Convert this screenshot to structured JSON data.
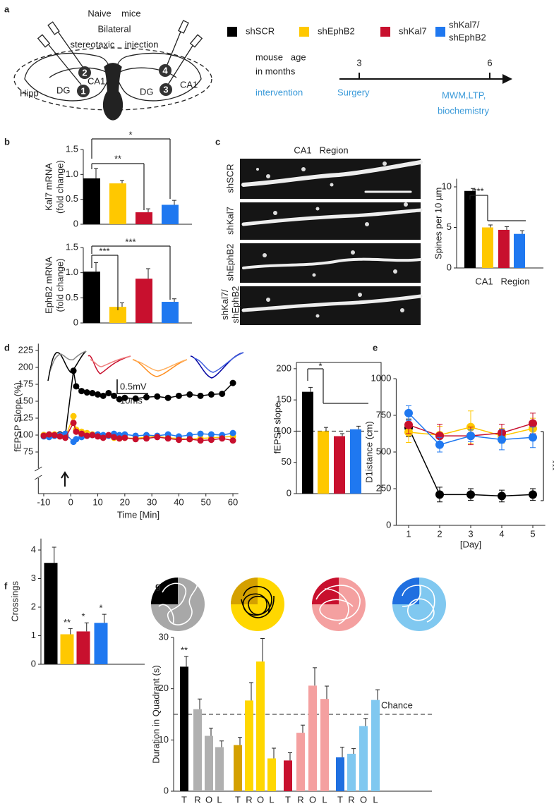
{
  "figure": {
    "panel_labels": [
      "a",
      "b",
      "c",
      "d",
      "e",
      "f",
      "g"
    ],
    "legend": [
      {
        "label": [
          "shSCR"
        ],
        "color": "#000000"
      },
      {
        "label": [
          "shEphB2"
        ],
        "color": "#ffc800"
      },
      {
        "label": [
          "shKal7"
        ],
        "color": "#c8102e"
      },
      {
        "label": [
          "shKal7/",
          "shEphB2"
        ],
        "color": "#1f78f0"
      }
    ],
    "diagram": {
      "title_lines": [
        "Naive    mice",
        "Bilateral",
        "stereotaxic    injection"
      ],
      "regions": [
        "Hipp",
        "DG",
        "CA1",
        "DG",
        "CA1"
      ],
      "sites": [
        "1",
        "2",
        "3",
        "4"
      ]
    },
    "timeline": {
      "axis_label": [
        "mouse   age",
        "in months"
      ],
      "ticks": [
        "3",
        "6"
      ],
      "row_label": "intervention",
      "events": [
        [
          "Surgery"
        ],
        [
          "MWM,LTP,",
          "biochemistry"
        ]
      ]
    },
    "micrographs": {
      "title": "CA1   Region",
      "rows": [
        [
          "shSCR"
        ],
        [
          "shKal7"
        ],
        [
          "shEphB2"
        ],
        [
          "shKal7/",
          "shEphB2"
        ]
      ]
    },
    "traces_scale": [
      "0.5mV",
      "10ms"
    ]
  },
  "chart_data": [
    {
      "type": "bar",
      "ylabel": [
        "Kal7 mRNA",
        "(fold change)"
      ],
      "values": [
        0.92,
        0.82,
        0.24,
        0.39
      ],
      "errors": [
        0.2,
        0.06,
        0.07,
        0.09
      ],
      "colors": [
        "#000000",
        "#ffc800",
        "#c8102e",
        "#1f78f0"
      ],
      "ylim": [
        0,
        1.5
      ],
      "yticks": [
        0,
        0.5,
        {
          "value": 1,
          "label": "1.0"
        },
        1.5
      ],
      "significance": [
        "**",
        "*"
      ]
    },
    {
      "type": "bar",
      "ylabel": [
        "EphB2 mRNA",
        "(fold change)"
      ],
      "values": [
        1.02,
        0.32,
        0.88,
        0.42
      ],
      "errors": [
        0.18,
        0.08,
        0.2,
        0.06
      ],
      "colors": [
        "#000000",
        "#ffc800",
        "#c8102e",
        "#1f78f0"
      ],
      "ylim": [
        0,
        1.5
      ],
      "yticks": [
        0,
        0.5,
        {
          "value": 1,
          "label": "1.0"
        },
        1.5
      ],
      "significance": [
        "***",
        "***"
      ]
    },
    {
      "type": "bar",
      "ylabel": [
        "Spines per 10 µm"
      ],
      "xlabel": "CA1   Region",
      "values": [
        9.5,
        5.0,
        4.7,
        4.2
      ],
      "errors": [
        0.3,
        0.3,
        0.4,
        0.4
      ],
      "colors": [
        "#000000",
        "#ffc800",
        "#c8102e",
        "#1f78f0"
      ],
      "ylim": [
        0,
        11
      ],
      "yticks": [
        0,
        5,
        10
      ],
      "significance": [
        "***"
      ]
    },
    {
      "type": "line",
      "ylabel": [
        "fEPSP Slope (%)"
      ],
      "xlabel": "Time [Min]",
      "x": [
        -10,
        -8,
        -6,
        -4,
        -2,
        1,
        2,
        4,
        6,
        8,
        10,
        12,
        14,
        16,
        18,
        20,
        24,
        28,
        32,
        36,
        40,
        44,
        48,
        52,
        56,
        60
      ],
      "series": [
        {
          "color": "#000000",
          "values": [
            100,
            100,
            99,
            101,
            100,
            195,
            172,
            165,
            163,
            162,
            160,
            158,
            162,
            158,
            153,
            155,
            154,
            156,
            157,
            155,
            158,
            160,
            158,
            160,
            161,
            177
          ]
        },
        {
          "color": "#ffc800",
          "values": [
            100,
            98,
            101,
            99,
            97,
            128,
            108,
            105,
            103,
            101,
            100,
            97,
            99,
            96,
            95,
            96,
            95,
            97,
            98,
            96,
            95,
            94,
            95,
            96,
            97,
            98
          ]
        },
        {
          "color": "#1f78f0",
          "values": [
            98,
            97,
            99,
            100,
            102,
            90,
            94,
            97,
            99,
            100,
            101,
            100,
            99,
            102,
            100,
            101,
            99,
            100,
            99,
            101,
            98,
            100,
            102,
            101,
            100,
            103
          ]
        },
        {
          "color": "#c8102e",
          "values": [
            99,
            101,
            100,
            98,
            96,
            118,
            105,
            102,
            99,
            100,
            98,
            96,
            100,
            97,
            95,
            96,
            94,
            95,
            97,
            95,
            93,
            94,
            92,
            93,
            95,
            92
          ]
        }
      ],
      "xlim": [
        -12,
        62
      ],
      "xticks": [
        -10,
        0,
        10,
        20,
        30,
        40,
        50,
        60
      ],
      "ylim": [
        60,
        235
      ],
      "yticks": [
        75,
        100,
        125,
        150,
        175,
        200,
        225
      ]
    },
    {
      "type": "bar",
      "ylabel": [
        "fEPSP slope"
      ],
      "values": [
        163,
        100,
        92,
        103
      ],
      "errors": [
        7,
        6,
        4,
        5
      ],
      "colors": [
        "#000000",
        "#ffc800",
        "#c8102e",
        "#1f78f0"
      ],
      "ylim": [
        0,
        210
      ],
      "yticks": [
        0,
        50,
        100,
        150,
        200
      ],
      "reference_line": 100,
      "significance": [
        "*"
      ]
    },
    {
      "type": "line",
      "ylabel": [
        "D1istance (cm)"
      ],
      "xlabel": "[Day]",
      "x": [
        1,
        2,
        3,
        4,
        5
      ],
      "series": [
        {
          "color": "#000000",
          "values": [
            665,
            210,
            210,
            200,
            210
          ],
          "errors": [
            60,
            50,
            40,
            40,
            40
          ]
        },
        {
          "color": "#ffc800",
          "values": [
            635,
            615,
            670,
            610,
            660
          ],
          "errors": [
            70,
            60,
            110,
            50,
            70
          ]
        },
        {
          "color": "#c8102e",
          "values": [
            685,
            610,
            610,
            630,
            695
          ],
          "errors": [
            60,
            80,
            60,
            60,
            70
          ]
        },
        {
          "color": "#1f78f0",
          "values": [
            765,
            550,
            610,
            585,
            600
          ],
          "errors": [
            50,
            50,
            40,
            70,
            70
          ]
        }
      ],
      "xlim": [
        0.6,
        5.4
      ],
      "xticks": [
        1,
        2,
        3,
        4,
        5
      ],
      "ylim": [
        0,
        1000
      ],
      "yticks": [
        0,
        250,
        500,
        750,
        1000
      ],
      "significance": [
        "***"
      ]
    },
    {
      "type": "bar",
      "ylabel": [
        "Crossings"
      ],
      "values": [
        3.55,
        1.05,
        1.15,
        1.45
      ],
      "errors": [
        0.55,
        0.2,
        0.3,
        0.3
      ],
      "colors": [
        "#000000",
        "#ffc800",
        "#c8102e",
        "#1f78f0"
      ],
      "ylim": [
        0,
        4.4
      ],
      "yticks": [
        0,
        1,
        2,
        3,
        4
      ],
      "significance": [
        null,
        "**",
        "*",
        "*"
      ]
    },
    {
      "type": "bar",
      "ylabel": [
        "Duration in Quadrant (s)"
      ],
      "categories": [
        "T",
        "R",
        "O",
        "L",
        "T",
        "R",
        "O",
        "L",
        "T",
        "R",
        "O",
        "L",
        "T",
        "R",
        "O",
        "L"
      ],
      "values": [
        24.3,
        16,
        10.8,
        8.6,
        9,
        17.7,
        25.3,
        6.4,
        6,
        11.4,
        20.6,
        18,
        6.6,
        7.3,
        12.7,
        17.8
      ],
      "errors": [
        2,
        2,
        1.5,
        1.2,
        1.5,
        3.5,
        4.5,
        2,
        1.5,
        1.5,
        3.5,
        2.5,
        2,
        1,
        1.5,
        2
      ],
      "colors": [
        "#000000",
        "#b0b0b0",
        "#b0b0b0",
        "#b0b0b0",
        "#d4a000",
        "#ffd700",
        "#ffd700",
        "#ffd700",
        "#c8102e",
        "#f4a0a0",
        "#f4a0a0",
        "#f4a0a0",
        "#1f6fe0",
        "#80c8f0",
        "#80c8f0",
        "#80c8f0"
      ],
      "ylim": [
        0,
        30
      ],
      "yticks": [
        0,
        10,
        20,
        30
      ],
      "reference_line": 15,
      "reference_label": "Chance",
      "significance": [
        "**",
        null,
        null,
        null,
        null,
        null,
        null,
        null,
        null,
        null,
        null,
        null,
        null,
        null,
        null,
        null
      ]
    }
  ]
}
